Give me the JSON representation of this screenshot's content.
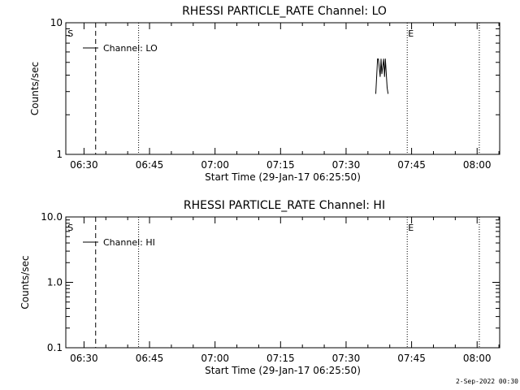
{
  "footer": {
    "timestamp": "2-Sep-2022 00:30"
  },
  "chart_data": [
    {
      "type": "line",
      "title": "RHESSI PARTICLE_RATE Channel: LO",
      "xlabel": "Start Time (29-Jan-17 06:25:50)",
      "ylabel": "Counts/sec",
      "yscale": "log",
      "ylim": [
        1,
        10
      ],
      "y_ticks": [
        "1",
        "10"
      ],
      "xlim": [
        "06:25:50",
        "08:05:10"
      ],
      "x_ticks": [
        "06:30",
        "06:45",
        "07:00",
        "07:15",
        "07:30",
        "07:45",
        "08:00"
      ],
      "legend": "top-left",
      "series": [
        {
          "name": "Channel: LO",
          "x": [
            "07:36:48",
            "07:37:12",
            "07:37:24",
            "07:37:48",
            "07:38:00",
            "07:38:12",
            "07:38:36",
            "07:38:48",
            "07:39:00",
            "07:39:24",
            "07:39:36"
          ],
          "y": [
            2.9,
            5.3,
            5.3,
            3.9,
            5.3,
            4.1,
            5.3,
            3.9,
            5.3,
            3.2,
            2.9
          ]
        }
      ],
      "markers": {
        "S": "06:26:15",
        "E": "07:44:00",
        "dashed": "06:32:40",
        "dotted": [
          "06:42:30",
          "07:44:00",
          "08:00:30"
        ]
      }
    },
    {
      "type": "line",
      "title": "RHESSI PARTICLE_RATE Channel: HI",
      "xlabel": "Start Time (29-Jan-17 06:25:50)",
      "ylabel": "Counts/sec",
      "yscale": "log",
      "ylim": [
        0.1,
        10
      ],
      "y_ticks": [
        "0.1",
        "1.0",
        "10.0"
      ],
      "xlim": [
        "06:25:50",
        "08:05:10"
      ],
      "x_ticks": [
        "06:30",
        "06:45",
        "07:00",
        "07:15",
        "07:30",
        "07:45",
        "08:00"
      ],
      "legend": "top-left",
      "series": [
        {
          "name": "Channel: HI",
          "x": [],
          "y": []
        }
      ],
      "markers": {
        "S": "06:26:15",
        "E": "07:44:00",
        "dashed": "06:32:40",
        "dotted": [
          "06:42:30",
          "07:44:00",
          "08:00:30"
        ]
      }
    }
  ]
}
